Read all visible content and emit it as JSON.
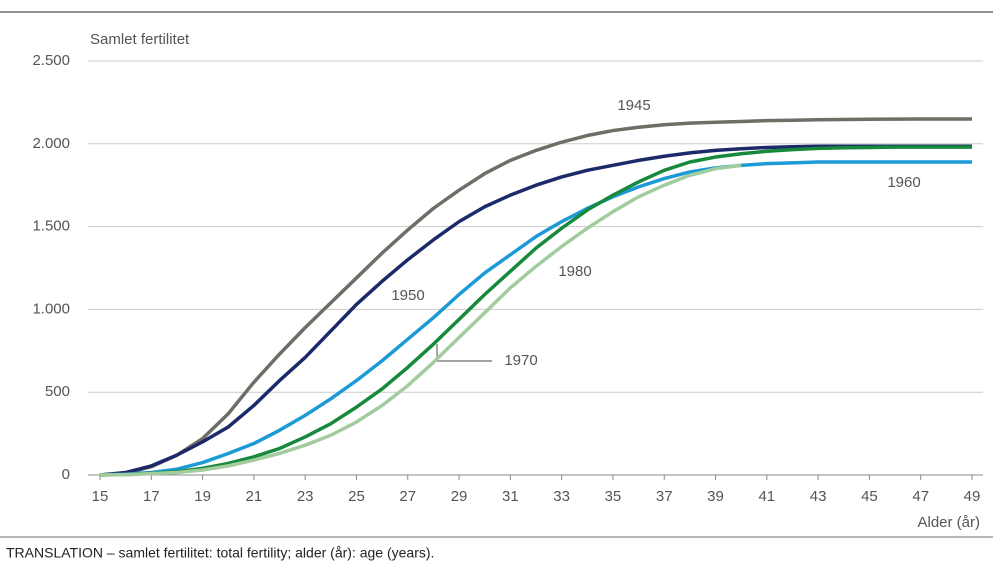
{
  "chart_data": {
    "type": "line",
    "y_label": "Samlet fertilitet",
    "x_label": "Alder (år)",
    "note": "TRANSLATION – samlet fertilitet: total fertility; alder (år): age (years).",
    "x": [
      15,
      16,
      17,
      18,
      19,
      20,
      21,
      22,
      23,
      24,
      25,
      26,
      27,
      28,
      29,
      30,
      31,
      32,
      33,
      34,
      35,
      36,
      37,
      38,
      39,
      40,
      41,
      42,
      43,
      44,
      45,
      46,
      47,
      48,
      49
    ],
    "xlim": [
      15,
      49
    ],
    "xticks": [
      15,
      17,
      19,
      21,
      23,
      25,
      27,
      29,
      31,
      33,
      35,
      37,
      39,
      41,
      43,
      45,
      47,
      49
    ],
    "ylim": [
      0,
      2500
    ],
    "yticks": [
      0,
      500,
      {
        "value": 1000,
        "label": "1.000"
      },
      {
        "value": 1500,
        "label": "1.500"
      },
      {
        "value": 2000,
        "label": "2.000"
      },
      {
        "value": 2500,
        "label": "2.500"
      }
    ],
    "grid": true,
    "series": [
      {
        "name": "1945",
        "color": "#6e6e66",
        "values": [
          0,
          10,
          50,
          120,
          220,
          370,
          560,
          730,
          890,
          1040,
          1190,
          1340,
          1480,
          1610,
          1720,
          1820,
          1900,
          1960,
          2010,
          2050,
          2080,
          2100,
          2115,
          2125,
          2130,
          2135,
          2140,
          2142,
          2145,
          2147,
          2148,
          2149,
          2150,
          2150,
          2150
        ]
      },
      {
        "name": "1950",
        "color": "#1c2a6a",
        "values": [
          0,
          15,
          55,
          120,
          200,
          290,
          420,
          570,
          710,
          870,
          1030,
          1170,
          1300,
          1420,
          1530,
          1620,
          1690,
          1750,
          1800,
          1840,
          1870,
          1900,
          1925,
          1945,
          1960,
          1970,
          1978,
          1982,
          1985,
          1985,
          1985,
          1985,
          1985,
          1985,
          1985
        ]
      },
      {
        "name": "1960",
        "color": "#1c9ad6",
        "values": [
          0,
          5,
          15,
          35,
          75,
          130,
          190,
          270,
          360,
          460,
          570,
          690,
          820,
          950,
          1090,
          1220,
          1330,
          1440,
          1530,
          1610,
          1680,
          1740,
          1790,
          1830,
          1855,
          1870,
          1880,
          1885,
          1890,
          1890,
          1890,
          1890,
          1890,
          1890,
          1890
        ]
      },
      {
        "name": "1970",
        "color": "#16893b",
        "values": [
          0,
          3,
          10,
          20,
          40,
          70,
          110,
          160,
          230,
          310,
          410,
          520,
          650,
          790,
          940,
          1090,
          1230,
          1370,
          1490,
          1600,
          1690,
          1770,
          1840,
          1890,
          1920,
          1940,
          1955,
          1965,
          1972,
          1976,
          1978,
          1980,
          1980,
          1980,
          1980
        ]
      },
      {
        "name": "1980",
        "color": "#a2cc9e",
        "values": [
          0,
          2,
          8,
          15,
          30,
          55,
          90,
          130,
          180,
          240,
          320,
          420,
          540,
          680,
          830,
          980,
          1130,
          1260,
          1380,
          1490,
          1590,
          1680,
          1750,
          1810,
          1850,
          1870,
          null,
          null,
          null,
          null,
          null,
          null,
          null,
          null,
          null
        ]
      }
    ]
  }
}
